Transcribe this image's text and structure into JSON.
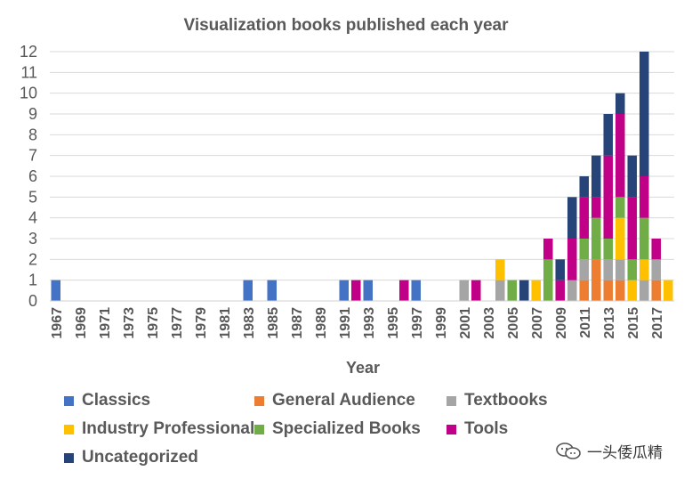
{
  "chart_data": {
    "type": "bar",
    "stacked": true,
    "title": "Visualization books published each year",
    "xlabel": "Year",
    "ylabel": "",
    "ylim": [
      0,
      12
    ],
    "yticks": [
      0,
      1,
      2,
      3,
      4,
      5,
      6,
      7,
      8,
      9,
      10,
      11,
      12
    ],
    "grid": true,
    "legend_position": "bottom",
    "categories": [
      1967,
      1968,
      1969,
      1970,
      1971,
      1972,
      1973,
      1974,
      1975,
      1976,
      1977,
      1978,
      1979,
      1980,
      1981,
      1982,
      1983,
      1984,
      1985,
      1986,
      1987,
      1988,
      1989,
      1990,
      1991,
      1992,
      1993,
      1994,
      1995,
      1996,
      1997,
      1998,
      1999,
      2000,
      2001,
      2002,
      2003,
      2004,
      2005,
      2006,
      2007,
      2008,
      2009,
      2010,
      2011,
      2012,
      2013,
      2014,
      2015,
      2016,
      2017,
      2018
    ],
    "tick_labels": [
      "1967",
      "1969",
      "1971",
      "1973",
      "1975",
      "1977",
      "1979",
      "1981",
      "1983",
      "1985",
      "1987",
      "1989",
      "1991",
      "1993",
      "1995",
      "1997",
      "1999",
      "2001",
      "2003",
      "2005",
      "2007",
      "2009",
      "2011",
      "2013",
      "2015",
      "2017"
    ],
    "series": [
      {
        "name": "Classics",
        "color": "#4472C4",
        "values": [
          1,
          0,
          0,
          0,
          0,
          0,
          0,
          0,
          0,
          0,
          0,
          0,
          0,
          0,
          0,
          0,
          1,
          0,
          1,
          0,
          0,
          0,
          0,
          0,
          1,
          0,
          1,
          0,
          0,
          0,
          1,
          0,
          0,
          0,
          0,
          0,
          0,
          0,
          0,
          0,
          0,
          0,
          0,
          0,
          0,
          0,
          0,
          0,
          0,
          0,
          0,
          0
        ]
      },
      {
        "name": "General Audience",
        "color": "#ED7D31",
        "values": [
          0,
          0,
          0,
          0,
          0,
          0,
          0,
          0,
          0,
          0,
          0,
          0,
          0,
          0,
          0,
          0,
          0,
          0,
          0,
          0,
          0,
          0,
          0,
          0,
          0,
          0,
          0,
          0,
          0,
          0,
          0,
          0,
          0,
          0,
          0,
          0,
          0,
          0,
          0,
          0,
          0,
          0,
          0,
          0,
          1,
          2,
          1,
          1,
          0,
          0,
          1,
          0
        ]
      },
      {
        "name": "Textbooks",
        "color": "#A5A5A5",
        "values": [
          0,
          0,
          0,
          0,
          0,
          0,
          0,
          0,
          0,
          0,
          0,
          0,
          0,
          0,
          0,
          0,
          0,
          0,
          0,
          0,
          0,
          0,
          0,
          0,
          0,
          0,
          0,
          0,
          0,
          0,
          0,
          0,
          0,
          0,
          1,
          0,
          0,
          1,
          0,
          0,
          0,
          0,
          0,
          1,
          1,
          0,
          1,
          1,
          0,
          1,
          1,
          0
        ]
      },
      {
        "name": "Industry Professional",
        "color": "#FFC000",
        "values": [
          0,
          0,
          0,
          0,
          0,
          0,
          0,
          0,
          0,
          0,
          0,
          0,
          0,
          0,
          0,
          0,
          0,
          0,
          0,
          0,
          0,
          0,
          0,
          0,
          0,
          0,
          0,
          0,
          0,
          0,
          0,
          0,
          0,
          0,
          0,
          0,
          0,
          1,
          0,
          0,
          1,
          0,
          0,
          0,
          0,
          0,
          0,
          2,
          1,
          1,
          0,
          1
        ]
      },
      {
        "name": "Specialized Books",
        "color": "#70AD47",
        "values": [
          0,
          0,
          0,
          0,
          0,
          0,
          0,
          0,
          0,
          0,
          0,
          0,
          0,
          0,
          0,
          0,
          0,
          0,
          0,
          0,
          0,
          0,
          0,
          0,
          0,
          0,
          0,
          0,
          0,
          0,
          0,
          0,
          0,
          0,
          0,
          0,
          0,
          0,
          1,
          0,
          0,
          2,
          0,
          0,
          1,
          2,
          1,
          1,
          1,
          2,
          0,
          0
        ]
      },
      {
        "name": "Tools",
        "color": "#C00086",
        "values": [
          0,
          0,
          0,
          0,
          0,
          0,
          0,
          0,
          0,
          0,
          0,
          0,
          0,
          0,
          0,
          0,
          0,
          0,
          0,
          0,
          0,
          0,
          0,
          0,
          0,
          1,
          0,
          0,
          0,
          1,
          0,
          0,
          0,
          0,
          0,
          1,
          0,
          0,
          0,
          0,
          0,
          1,
          1,
          2,
          2,
          1,
          4,
          4,
          3,
          2,
          1,
          0
        ]
      },
      {
        "name": "Uncategorized",
        "color": "#264478",
        "values": [
          0,
          0,
          0,
          0,
          0,
          0,
          0,
          0,
          0,
          0,
          0,
          0,
          0,
          0,
          0,
          0,
          0,
          0,
          0,
          0,
          0,
          0,
          0,
          0,
          0,
          0,
          0,
          0,
          0,
          0,
          0,
          0,
          0,
          0,
          0,
          0,
          0,
          0,
          0,
          1,
          0,
          0,
          1,
          2,
          1,
          2,
          2,
          1,
          2,
          6,
          0,
          0
        ]
      }
    ]
  },
  "watermark": {
    "text": "一头倭瓜精",
    "icon": "chat-bubble-icon"
  }
}
